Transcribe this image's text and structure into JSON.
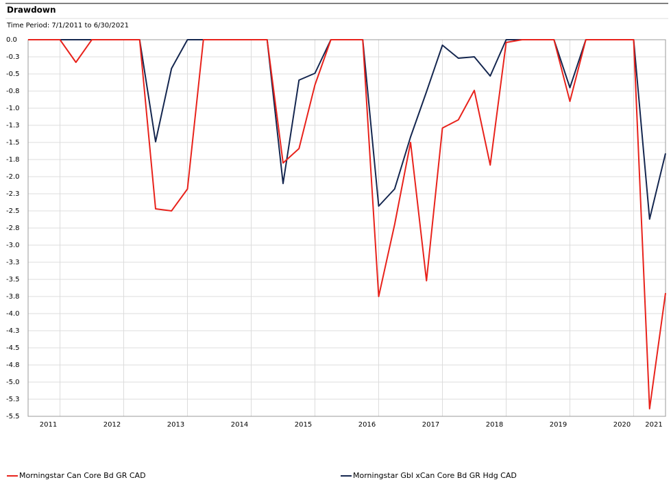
{
  "chart_data": {
    "type": "line",
    "title": "Drawdown",
    "subtitle": "Time Period: 7/1/2011 to 6/30/2021",
    "x": [
      2011.5,
      2011.75,
      2012,
      2012.25,
      2012.5,
      2012.75,
      2013,
      2013.25,
      2013.5,
      2013.75,
      2014,
      2014.25,
      2014.5,
      2014.75,
      2015,
      2015.25,
      2015.5,
      2015.75,
      2016,
      2016.25,
      2016.5,
      2016.75,
      2017,
      2017.25,
      2017.5,
      2017.75,
      2018,
      2018.25,
      2018.5,
      2018.75,
      2019,
      2019.25,
      2019.5,
      2019.75,
      2020,
      2020.25,
      2020.5,
      2020.75,
      2021,
      2021.25,
      2021.5
    ],
    "series": [
      {
        "name": "Morningstar Can Core Bd GR CAD",
        "color": "#e8221b",
        "values": [
          0,
          0,
          0,
          -0.33,
          0,
          0,
          0,
          0,
          -2.47,
          -2.5,
          -2.18,
          0,
          0,
          0,
          0,
          0,
          -1.8,
          -1.59,
          -0.66,
          0,
          0,
          0,
          -3.75,
          -2.7,
          -1.5,
          -3.52,
          -1.29,
          -1.17,
          -0.74,
          -1.83,
          -0.04,
          0,
          0,
          0,
          -0.9,
          0,
          0,
          0,
          0,
          -5.39,
          -3.7
        ]
      },
      {
        "name": "Morningstar Gbl xCan Core Bd GR Hdg CAD",
        "color": "#14264f",
        "values": [
          0,
          0,
          0,
          0,
          0,
          0,
          0,
          0,
          -1.49,
          -0.42,
          0,
          0,
          0,
          0,
          0,
          0,
          -2.1,
          -0.59,
          -0.49,
          0,
          0,
          0,
          -2.43,
          -2.18,
          -1.42,
          -0.76,
          -0.08,
          -0.27,
          -0.25,
          -0.53,
          0,
          0,
          0,
          0,
          -0.7,
          0,
          0,
          0,
          0,
          -2.62,
          -1.66
        ]
      }
    ],
    "xlim": [
      2011.5,
      2021.5
    ],
    "xticks": [
      2011,
      2012,
      2013,
      2014,
      2015,
      2016,
      2017,
      2018,
      2019,
      2020,
      2021
    ],
    "ylim": [
      -5.5,
      0
    ],
    "yticks": [
      {
        "value": 0,
        "label": "0.0"
      },
      {
        "value": -0.25,
        "label": "-0.3"
      },
      -0.5,
      {
        "value": -0.75,
        "label": "-0.8"
      },
      {
        "value": -1,
        "label": "-1.0"
      },
      {
        "value": -1.25,
        "label": "-1.3"
      },
      -1.5,
      {
        "value": -1.75,
        "label": "-1.8"
      },
      {
        "value": -2,
        "label": "-2.0"
      },
      {
        "value": -2.25,
        "label": "-2.3"
      },
      -2.5,
      {
        "value": -2.75,
        "label": "-2.8"
      },
      {
        "value": -3,
        "label": "-3.0"
      },
      {
        "value": -3.25,
        "label": "-3.3"
      },
      -3.5,
      {
        "value": -3.75,
        "label": "-3.8"
      },
      {
        "value": -4,
        "label": "-4.0"
      },
      {
        "value": -4.25,
        "label": "-4.3"
      },
      -4.5,
      {
        "value": -4.75,
        "label": "-4.8"
      },
      {
        "value": -5,
        "label": "-5.0"
      },
      {
        "value": -5.25,
        "label": "-5.3"
      },
      -5.5
    ],
    "grid": true
  }
}
